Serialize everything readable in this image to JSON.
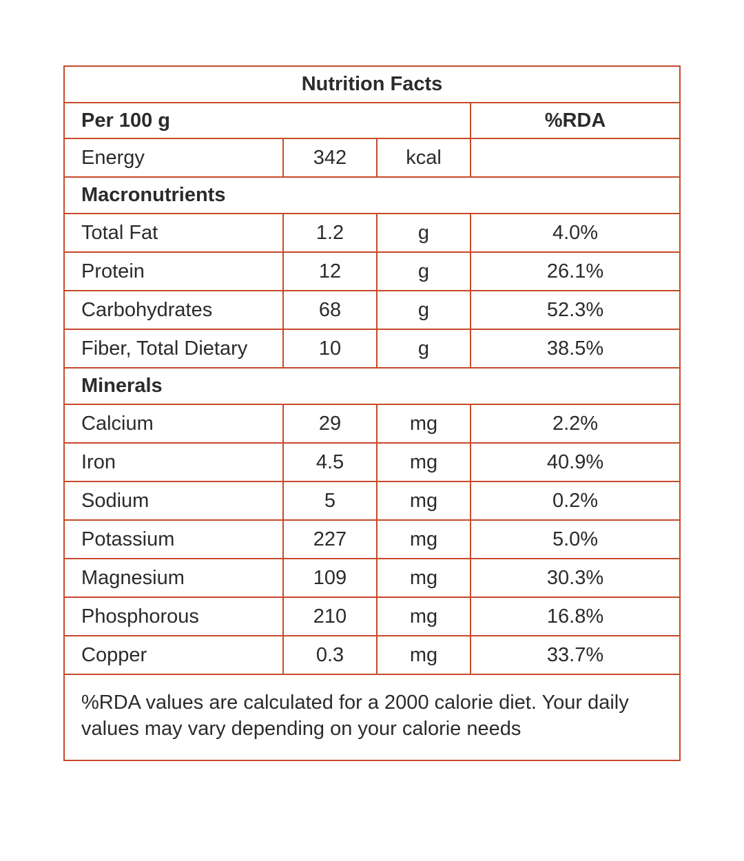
{
  "colors": {
    "border_accent": "#c6492a",
    "text": "#2b2b2b",
    "background": "#ffffff"
  },
  "table": {
    "title": "Nutrition Facts",
    "serving_label": "Per 100 g",
    "rda_header": "%RDA",
    "energy": {
      "name": "Energy",
      "value": "342",
      "unit": "kcal",
      "rda": ""
    },
    "sections": [
      {
        "label": "Macronutrients",
        "rows": [
          {
            "name": "Total Fat",
            "value": "1.2",
            "unit": "g",
            "rda": "4.0%"
          },
          {
            "name": "Protein",
            "value": "12",
            "unit": "g",
            "rda": "26.1%"
          },
          {
            "name": "Carbohydrates",
            "value": "68",
            "unit": "g",
            "rda": "52.3%"
          },
          {
            "name": "Fiber, Total Dietary",
            "value": "10",
            "unit": "g",
            "rda": "38.5%"
          }
        ]
      },
      {
        "label": "Minerals",
        "rows": [
          {
            "name": "Calcium",
            "value": "29",
            "unit": "mg",
            "rda": "2.2%"
          },
          {
            "name": "Iron",
            "value": "4.5",
            "unit": "mg",
            "rda": "40.9%"
          },
          {
            "name": "Sodium",
            "value": "5",
            "unit": "mg",
            "rda": "0.2%"
          },
          {
            "name": "Potassium",
            "value": "227",
            "unit": "mg",
            "rda": "5.0%"
          },
          {
            "name": "Magnesium",
            "value": "109",
            "unit": "mg",
            "rda": "30.3%"
          },
          {
            "name": "Phosphorous",
            "value": "210",
            "unit": "mg",
            "rda": "16.8%"
          },
          {
            "name": "Copper",
            "value": "0.3",
            "unit": "mg",
            "rda": "33.7%"
          }
        ]
      }
    ],
    "footnote": "%RDA values are calculated for a 2000 calorie diet. Your daily values may vary depending on your calorie needs"
  }
}
